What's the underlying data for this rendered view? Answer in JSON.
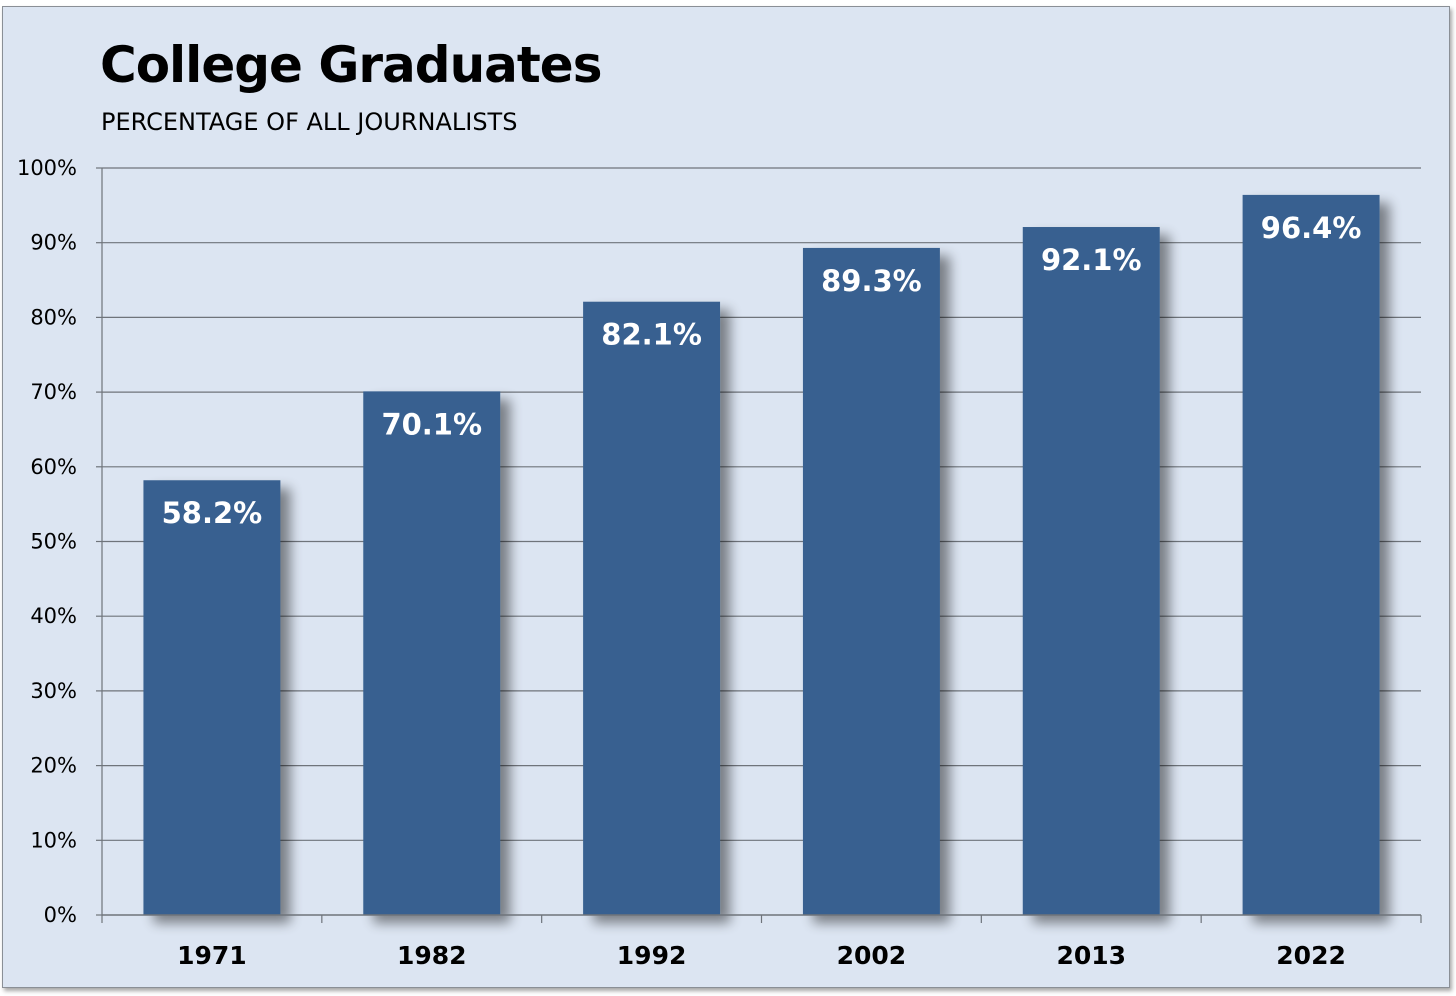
{
  "chart_data": {
    "type": "bar",
    "title": "College Graduates",
    "subtitle": "PERCENTAGE OF ALL JOURNALISTS",
    "categories": [
      "1971",
      "1982",
      "1992",
      "2002",
      "2013",
      "2022"
    ],
    "values": [
      58.2,
      70.1,
      82.1,
      89.3,
      92.1,
      96.4
    ],
    "data_labels": [
      "58.2%",
      "70.1%",
      "82.1%",
      "89.3%",
      "92.1%",
      "96.4%"
    ],
    "y_ticks": [
      "0%",
      "10%",
      "20%",
      "30%",
      "40%",
      "50%",
      "60%",
      "70%",
      "80%",
      "90%",
      "100%"
    ],
    "ylim": [
      0,
      100
    ],
    "xlabel": "",
    "ylabel": "",
    "grid": true,
    "legend": "none",
    "colors": {
      "bar": "#386090",
      "background": "#dce5f2",
      "gridline": "#6f747b"
    }
  }
}
